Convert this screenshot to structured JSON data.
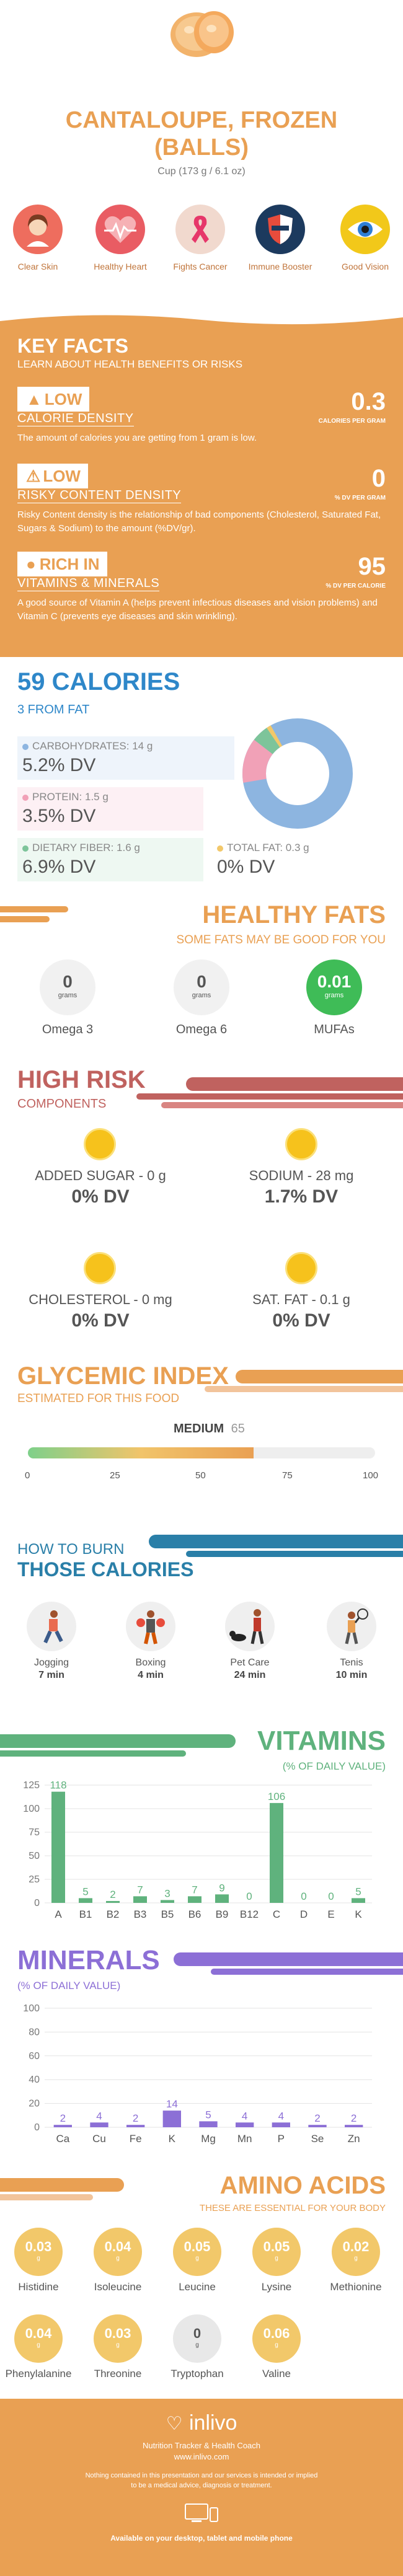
{
  "header": {
    "title_line1": "CANTALOUPE, FROZEN",
    "title_line2": "(BALLS)",
    "serving": "Cup (173 g / 6.1 oz)"
  },
  "health_benefits": [
    {
      "label": "Clear Skin",
      "icon": "woman-face-icon",
      "color": "#ee6d5e"
    },
    {
      "label": "Healthy Heart",
      "icon": "heart-pulse-icon",
      "color": "#e95c63"
    },
    {
      "label": "Fights Cancer",
      "icon": "ribbon-icon",
      "color": "#f1d9ce"
    },
    {
      "label": "Immune Booster",
      "icon": "shield-icon",
      "color": "#1c3a5e"
    },
    {
      "label": "Good Vision",
      "icon": "eye-icon",
      "color": "#f2c81a"
    }
  ],
  "key_facts": {
    "title": "KEY FACTS",
    "subtitle": "LEARN ABOUT HEALTH BENEFITS OR RISKS",
    "items": [
      {
        "badge": "LOW",
        "label": "CALORIE DENSITY",
        "value": "0.3",
        "unit": "CALORIES PER GRAM",
        "desc": "The amount of calories you are getting from 1 gram is low."
      },
      {
        "badge": "LOW",
        "label": "RISKY CONTENT DENSITY",
        "value": "0",
        "unit": "% DV PER GRAM",
        "desc": "Risky Content density is the relationship of bad components (Cholesterol, Saturated Fat, Sugars & Sodium) to the amount (%DV/gr)."
      },
      {
        "badge": "RICH  IN",
        "label": "VITAMINS & MINERALS",
        "value": "95",
        "unit": "% DV PER CALORIE",
        "desc": "A good source of Vitamin A (helps prevent infectious diseases and vision problems) and Vitamin C (prevents eye diseases and skin wrinkling)."
      }
    ]
  },
  "calories": {
    "title": "59 CALORIES",
    "from_fat": "3 FROM FAT",
    "carbs_label": "CARBOHYDRATES: 14 g",
    "carbs_dv": "5.2% DV",
    "protein_label": "PROTEIN: 1.5 g",
    "protein_dv": "3.5% DV",
    "fiber_label": "DIETARY FIBER: 1.6 g",
    "fiber_dv": "6.9% DV",
    "fat_label": "TOTAL FAT: 0.3 g",
    "fat_dv": "0% DV",
    "colors": {
      "carbs": "#8db5e0",
      "protein": "#f1a1b7",
      "fiber": "#7dc49a",
      "fat": "#f2c86a"
    }
  },
  "healthy_fats": {
    "title": "HEALTHY FATS",
    "subtitle": "SOME FATS MAY BE GOOD FOR YOU",
    "items": [
      {
        "value": "0",
        "unit": "grams",
        "name": "Omega 3"
      },
      {
        "value": "0",
        "unit": "grams",
        "name": "Omega 6"
      },
      {
        "value": "0.01",
        "unit": "grams",
        "name": "MUFAs"
      }
    ]
  },
  "high_risk": {
    "title": "HIGH RISK",
    "subtitle": "COMPONENTS",
    "items": [
      {
        "label": "ADDED SUGAR - 0 g",
        "value": "0% DV"
      },
      {
        "label": "SODIUM - 28 mg",
        "value": "1.7% DV"
      },
      {
        "label": "CHOLESTEROL - 0 mg",
        "value": "0% DV"
      },
      {
        "label": "SAT. FAT - 0.1 g",
        "value": "0% DV"
      }
    ]
  },
  "glycemic": {
    "title": "GLYCEMIC INDEX",
    "subtitle": "ESTIMATED FOR THIS FOOD",
    "level": "MEDIUM",
    "value": "65",
    "value_num": 65,
    "ticks": [
      "0",
      "25",
      "50",
      "75",
      "100"
    ]
  },
  "burn": {
    "title_line1": "HOW TO BURN",
    "title_line2": "THOSE CALORIES",
    "items": [
      {
        "name": "Jogging",
        "minutes": "7 min",
        "icon": "jogging-icon"
      },
      {
        "name": "Boxing",
        "minutes": "4 min",
        "icon": "boxing-icon"
      },
      {
        "name": "Pet Care",
        "minutes": "24 min",
        "icon": "dog-walking-icon"
      },
      {
        "name": "Tenis",
        "minutes": "10 min",
        "icon": "tennis-icon"
      }
    ]
  },
  "vitamins_title": "VITAMINS",
  "vitamins_subtitle": "(% OF DAILY VALUE)",
  "minerals_title": "MINERALS",
  "minerals_subtitle": "(% OF DAILY VALUE)",
  "chart_data": [
    {
      "type": "bar",
      "title": "VITAMINS",
      "subtitle": "(% OF DAILY VALUE)",
      "categories": [
        "A",
        "B1",
        "B2",
        "B3",
        "B5",
        "B6",
        "B9",
        "B12",
        "C",
        "D",
        "E",
        "K"
      ],
      "values": [
        118,
        5,
        2,
        7,
        3,
        7,
        9,
        0,
        106,
        0,
        0,
        5
      ],
      "ylim": [
        0,
        125
      ],
      "yticks": [
        "0",
        "25",
        "50",
        "75",
        "100",
        "125"
      ],
      "color": "#5fb27d"
    },
    {
      "type": "bar",
      "title": "MINERALS",
      "subtitle": "(% OF DAILY VALUE)",
      "categories": [
        "Ca",
        "Cu",
        "Fe",
        "K",
        "Mg",
        "Mn",
        "P",
        "Se",
        "Zn"
      ],
      "values": [
        2,
        4,
        2,
        14,
        5,
        4,
        4,
        2,
        2
      ],
      "ylim": [
        0,
        100
      ],
      "yticks": [
        "0",
        "20",
        "40",
        "60",
        "80",
        "100"
      ],
      "color": "#8c6fd6"
    }
  ],
  "amino": {
    "title": "AMINO ACIDS",
    "subtitle": "THESE ARE ESSENTIAL FOR YOUR BODY",
    "items": [
      {
        "value": "0.03",
        "unit": "g",
        "name": "Histidine"
      },
      {
        "value": "0.04",
        "unit": "g",
        "name": "Isoleucine"
      },
      {
        "value": "0.05",
        "unit": "g",
        "name": "Leucine"
      },
      {
        "value": "0.05",
        "unit": "g",
        "name": "Lysine"
      },
      {
        "value": "0.02",
        "unit": "g",
        "name": "Methionine"
      },
      {
        "value": "0.04",
        "unit": "g",
        "name": "Phenylalanine"
      },
      {
        "value": "0.03",
        "unit": "g",
        "name": "Threonine"
      },
      {
        "value": "0",
        "unit": "g",
        "name": "Tryptophan"
      },
      {
        "value": "0.06",
        "unit": "g",
        "name": "Valine"
      }
    ]
  },
  "footer": {
    "brand": "inlivo",
    "tagline": "Nutrition Tracker & Health Coach",
    "url": "www.inlivo.com",
    "disclaimer1": "Nothing contained in this presentation and our services is intended or implied",
    "disclaimer2": "to be a medical advice, diagnosis or treatment.",
    "available": "Available on your desktop, tablet and mobile phone"
  }
}
